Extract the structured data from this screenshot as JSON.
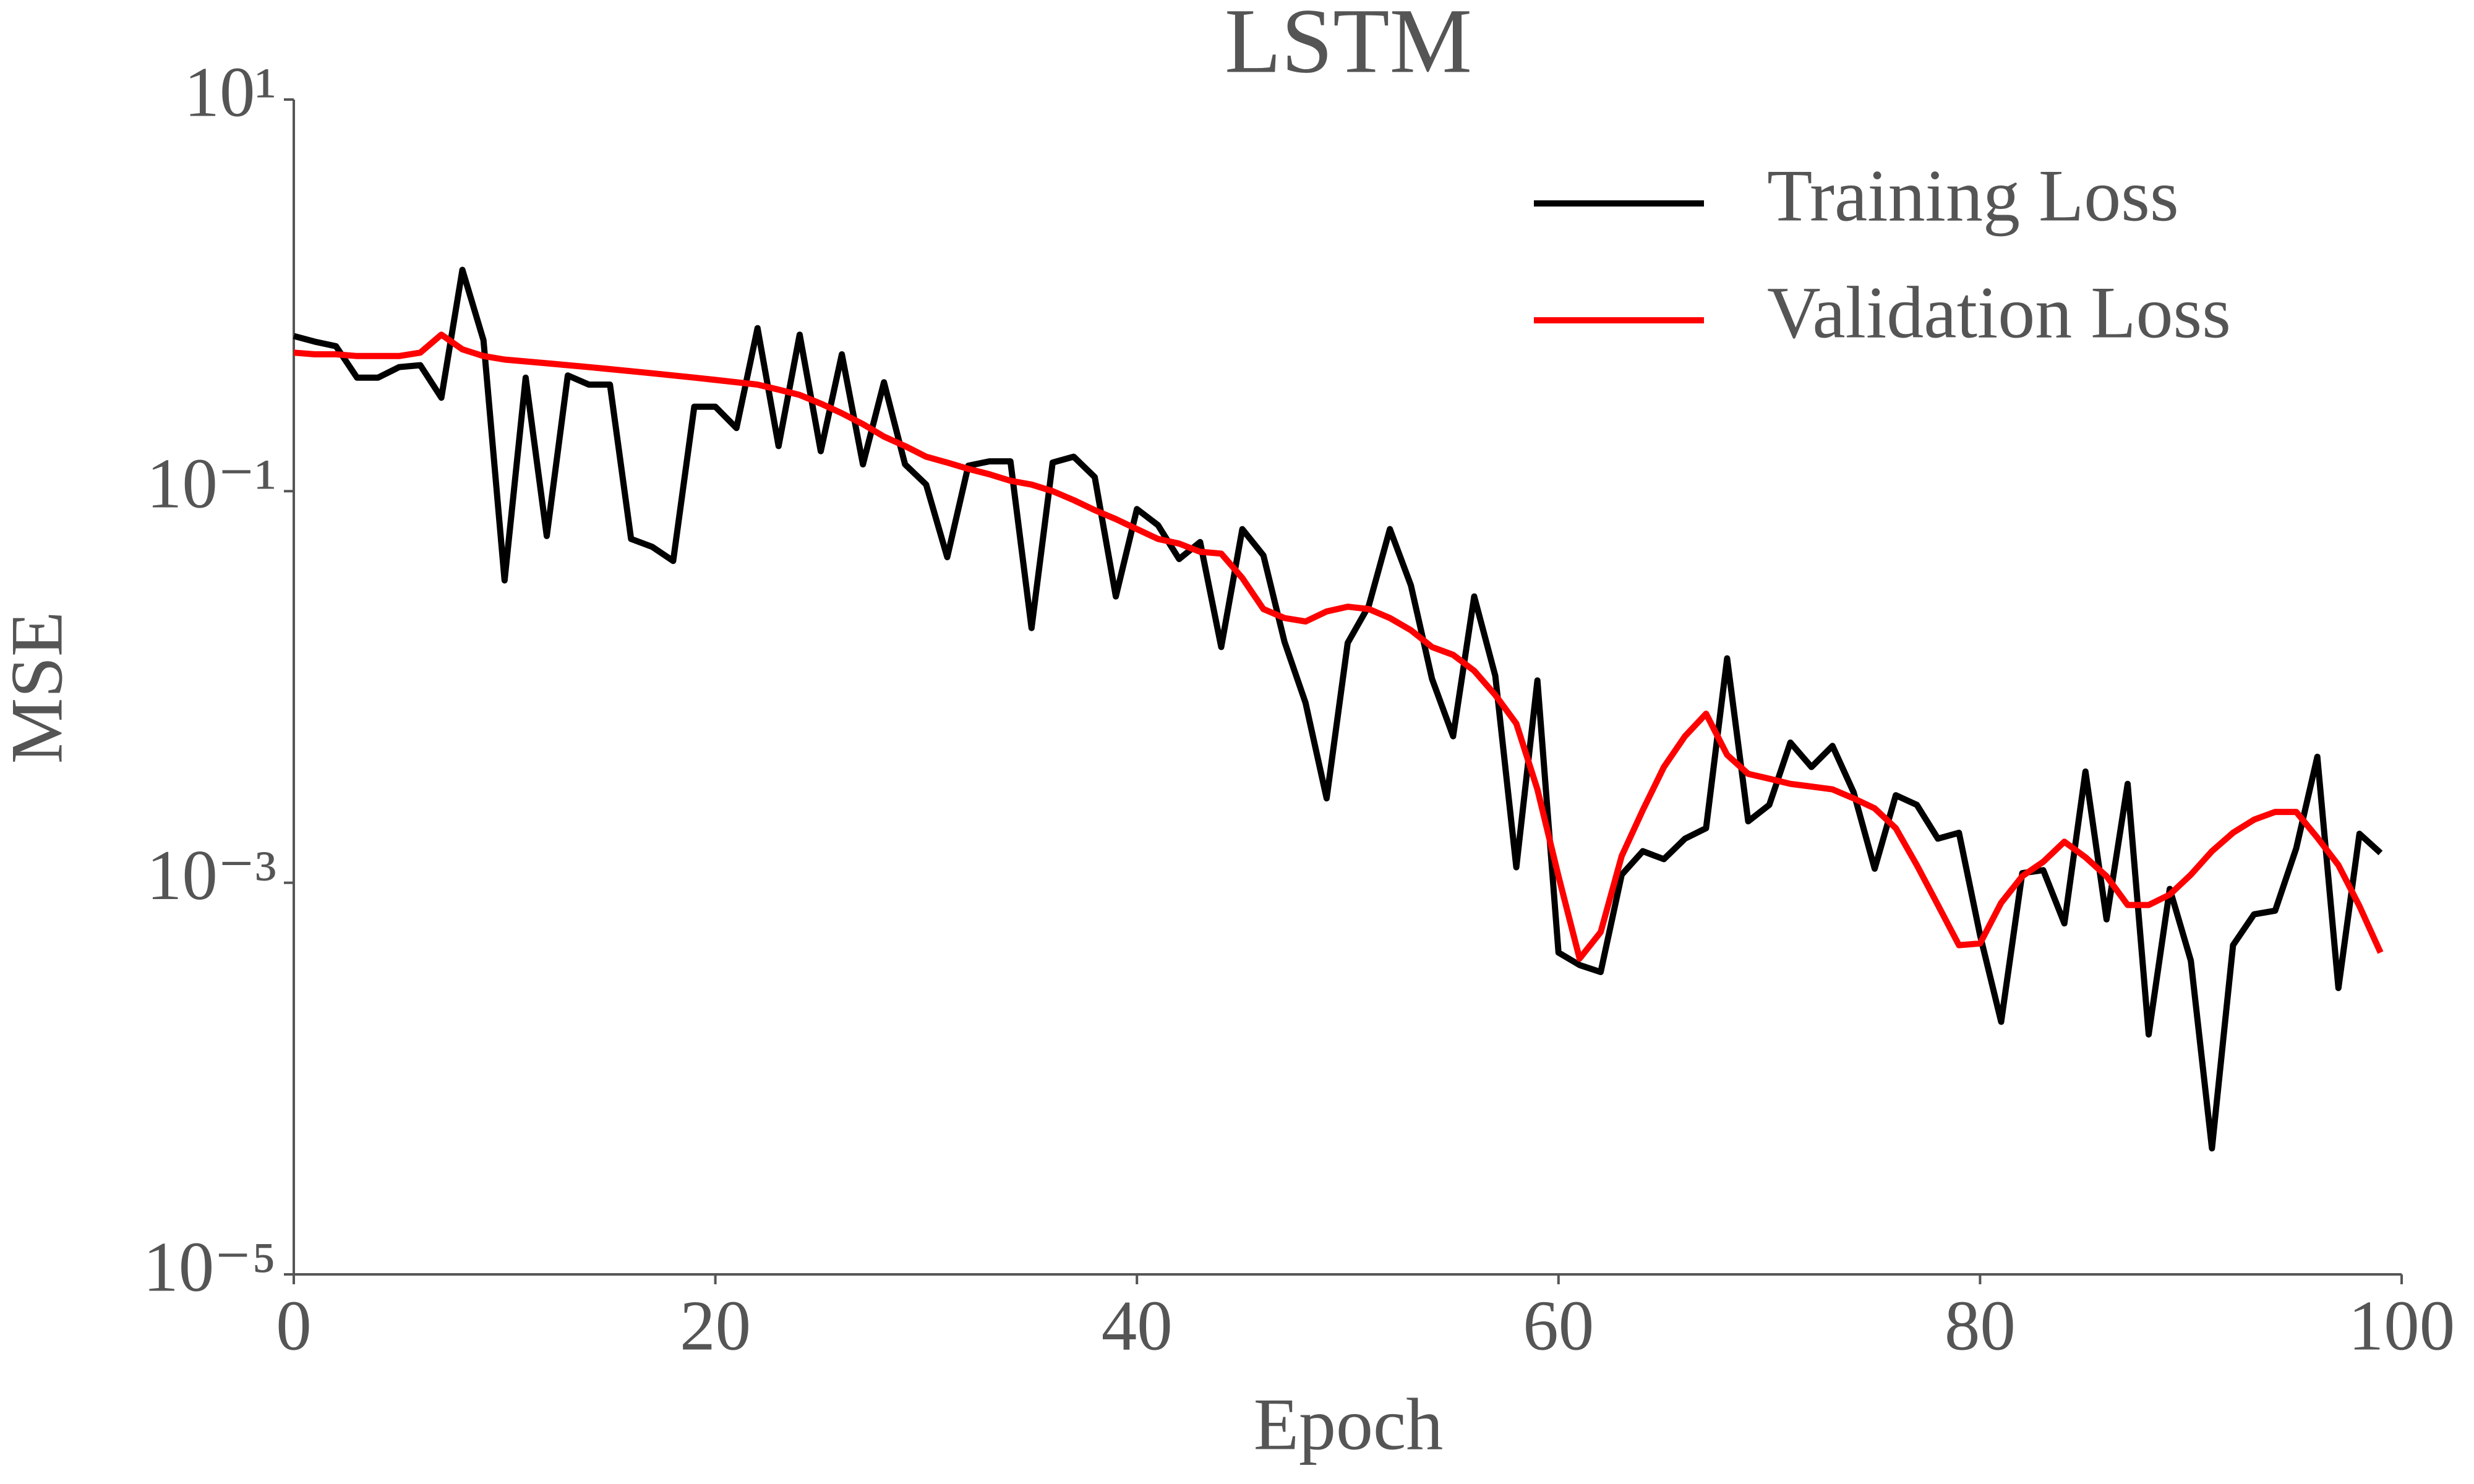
{
  "chart_data": {
    "type": "line",
    "title": "LSTM",
    "x_label": "Epoch",
    "y_label": "MSE",
    "yscale": "log",
    "grid": false,
    "legend": "upper right",
    "x": [
      0,
      1,
      2,
      3,
      4,
      5,
      6,
      7,
      8,
      9,
      10,
      11,
      12,
      13,
      14,
      15,
      16,
      17,
      18,
      19,
      20,
      21,
      22,
      23,
      24,
      25,
      26,
      27,
      28,
      29,
      30,
      31,
      32,
      33,
      34,
      35,
      36,
      37,
      38,
      39,
      40,
      41,
      42,
      43,
      44,
      45,
      46,
      47,
      48,
      49,
      50,
      51,
      52,
      53,
      54,
      55,
      56,
      57,
      58,
      59,
      60,
      61,
      62,
      63,
      64,
      65,
      66,
      67,
      68,
      69,
      70,
      71,
      72,
      73,
      74,
      75,
      76,
      77,
      78,
      79,
      80,
      81,
      82,
      83,
      84,
      85,
      86,
      87,
      88,
      89,
      90,
      91,
      92,
      93,
      94,
      95,
      96,
      97,
      98,
      99
    ],
    "xlim": [
      0,
      100
    ],
    "xticks": [
      0,
      20,
      40,
      60,
      80,
      100
    ],
    "ylim": [
      1e-05,
      10
    ],
    "yticks": [
      {
        "value": 1e-05,
        "label": "10⁻⁵"
      },
      {
        "value": 0.001,
        "label": "10⁻³"
      },
      {
        "value": 0.1,
        "label": "10⁻¹"
      },
      {
        "value": 10,
        "label": "10¹"
      }
    ],
    "series": [
      {
        "name": "Training Loss",
        "color": "#000000",
        "values": [
          0.62,
          0.58,
          0.55,
          0.38,
          0.38,
          0.43,
          0.44,
          0.3,
          1.35,
          0.59,
          0.035,
          0.38,
          0.059,
          0.39,
          0.35,
          0.35,
          0.057,
          0.052,
          0.044,
          0.27,
          0.27,
          0.21,
          0.68,
          0.17,
          0.63,
          0.16,
          0.5,
          0.137,
          0.36,
          0.137,
          0.108,
          0.046,
          0.135,
          0.142,
          0.142,
          0.02,
          0.14,
          0.15,
          0.118,
          0.029,
          0.081,
          0.067,
          0.045,
          0.055,
          0.016,
          0.064,
          0.047,
          0.017,
          0.0083,
          0.0027,
          0.0168,
          0.026,
          0.064,
          0.033,
          0.011,
          0.0056,
          0.029,
          0.0114,
          0.0012,
          0.0108,
          0.00044,
          0.00038,
          0.00035,
          0.0011,
          0.00145,
          0.00132,
          0.00168,
          0.0019,
          0.014,
          0.00206,
          0.0025,
          0.0052,
          0.0039,
          0.005,
          0.0029,
          0.00118,
          0.0028,
          0.0025,
          0.00168,
          0.0018,
          0.00054,
          0.000195,
          0.00112,
          0.00116,
          0.00062,
          0.0037,
          0.00065,
          0.0032,
          0.000168,
          0.00093,
          0.0004,
          4.4e-05,
          0.00048,
          0.00069,
          0.00072,
          0.0015,
          0.0044,
          0.00029,
          0.00178,
          0.00142
        ]
      },
      {
        "name": "Validation Loss",
        "color": "#ff0000",
        "values": [
          0.51,
          0.5,
          0.5,
          0.49,
          0.49,
          0.49,
          0.51,
          0.63,
          0.53,
          0.49,
          0.47,
          0.46,
          0.45,
          0.44,
          0.43,
          0.42,
          0.41,
          0.4,
          0.39,
          0.38,
          0.37,
          0.36,
          0.35,
          0.33,
          0.31,
          0.28,
          0.25,
          0.22,
          0.19,
          0.17,
          0.15,
          0.14,
          0.13,
          0.122,
          0.113,
          0.108,
          0.1,
          0.09,
          0.08,
          0.072,
          0.064,
          0.057,
          0.054,
          0.049,
          0.048,
          0.036,
          0.025,
          0.0225,
          0.0216,
          0.0243,
          0.0257,
          0.025,
          0.0225,
          0.0195,
          0.016,
          0.0146,
          0.0121,
          0.0091,
          0.0065,
          0.003,
          0.00108,
          0.00041,
          0.00056,
          0.00137,
          0.00235,
          0.0039,
          0.0056,
          0.0073,
          0.0045,
          0.0036,
          0.0034,
          0.0032,
          0.0031,
          0.003,
          0.0027,
          0.0024,
          0.0019,
          0.00123,
          0.00077,
          0.00048,
          0.00049,
          0.00079,
          0.00108,
          0.00128,
          0.00162,
          0.00135,
          0.00108,
          0.00077,
          0.00077,
          0.00087,
          0.0011,
          0.00145,
          0.0018,
          0.0021,
          0.0023,
          0.0023,
          0.0017,
          0.00123,
          0.00076,
          0.00044
        ]
      }
    ]
  }
}
